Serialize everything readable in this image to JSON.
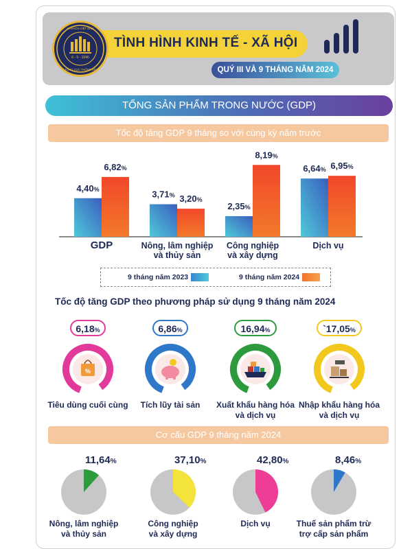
{
  "header": {
    "title": "TÌNH HÌNH KINH TẾ - XÃ HỘI",
    "subtitle": "QUÝ III VÀ 9 THÁNG NĂM 2024",
    "logo_text": [
      "CHXHCN VIỆT NAM",
      "TỔNG CỤC THỐNG KÊ",
      "6 - 5 - 1946"
    ]
  },
  "section_title": "TỔNG SẢN PHẨM TRONG NƯỚC (GDP)",
  "colors": {
    "series_2023": "#3a86d1",
    "series_2024": "#f25a2a",
    "accent_yellow": "#f3d23a",
    "navy": "#1e2a55"
  },
  "chart_data": [
    {
      "type": "bar",
      "title": "Tốc độ tăng GDP 9 tháng so với cùng kỳ năm trước",
      "categories": [
        "GDP",
        "Nông, lâm nghiệp và thủy sản",
        "Công nghiệp và xây dựng",
        "Dịch vụ"
      ],
      "category_lines": [
        [
          "GDP"
        ],
        [
          "Nông, lâm nghiệp",
          "và thủy sản"
        ],
        [
          "Công nghiệp",
          "và xây dựng"
        ],
        [
          "Dịch vụ"
        ]
      ],
      "series": [
        {
          "name": "9 tháng năm 2023",
          "values": [
            4.4,
            3.71,
            2.35,
            6.64
          ],
          "labels": [
            "4,40",
            "3,71",
            "2,35",
            "6,64"
          ]
        },
        {
          "name": "9 tháng năm 2024",
          "values": [
            6.82,
            3.2,
            8.19,
            6.95
          ],
          "labels": [
            "6,82",
            "3,20",
            "8,19",
            "6,95"
          ]
        }
      ],
      "unit": "%",
      "ylim": [
        0,
        9
      ],
      "legend": "bottom"
    },
    {
      "type": "table",
      "title": "Tốc độ tăng GDP theo phương pháp sử dụng 9 tháng năm 2024",
      "items": [
        {
          "label_lines": [
            "Tiêu dùng cuối cùng"
          ],
          "value": 6.18,
          "value_label": "6,18",
          "color": "#e23a9b",
          "icon": "shopping-bag-icon"
        },
        {
          "label_lines": [
            "Tích lũy tài sản"
          ],
          "value": 6.86,
          "value_label": "6,86",
          "color": "#2f78c9",
          "icon": "piggy-bank-icon"
        },
        {
          "label_lines": [
            "Xuất khẩu hàng hóa",
            "và dịch vụ"
          ],
          "value": 16.94,
          "value_label": "16,94",
          "color": "#2e9a3e",
          "icon": "cargo-ship-icon"
        },
        {
          "label_lines": [
            "Nhập khẩu hàng hóa",
            "và dịch vụ"
          ],
          "value": 17.05,
          "value_label": "`17,05",
          "color": "#f2c81f",
          "icon": "import-scale-icon"
        }
      ],
      "unit": "%"
    },
    {
      "type": "pie",
      "title": "Cơ cấu GDP 9 tháng năm 2024",
      "slices": [
        {
          "label_lines": [
            "Nông, lâm nghiệp",
            "và thủy sản"
          ],
          "value": 11.64,
          "value_label": "11,64",
          "color": "#2e9a3e"
        },
        {
          "label_lines": [
            "Công nghiệp",
            "và xây dựng"
          ],
          "value": 37.1,
          "value_label": "37,10",
          "color": "#f4e33a"
        },
        {
          "label_lines": [
            "Dịch vụ"
          ],
          "value": 42.8,
          "value_label": "42,80",
          "color": "#ee3d97"
        },
        {
          "label_lines": [
            "Thuế sản phẩm trừ",
            "trợ cấp sản phẩm"
          ],
          "value": 8.46,
          "value_label": "8,46",
          "color": "#2f78c9"
        }
      ],
      "unit": "%"
    }
  ]
}
